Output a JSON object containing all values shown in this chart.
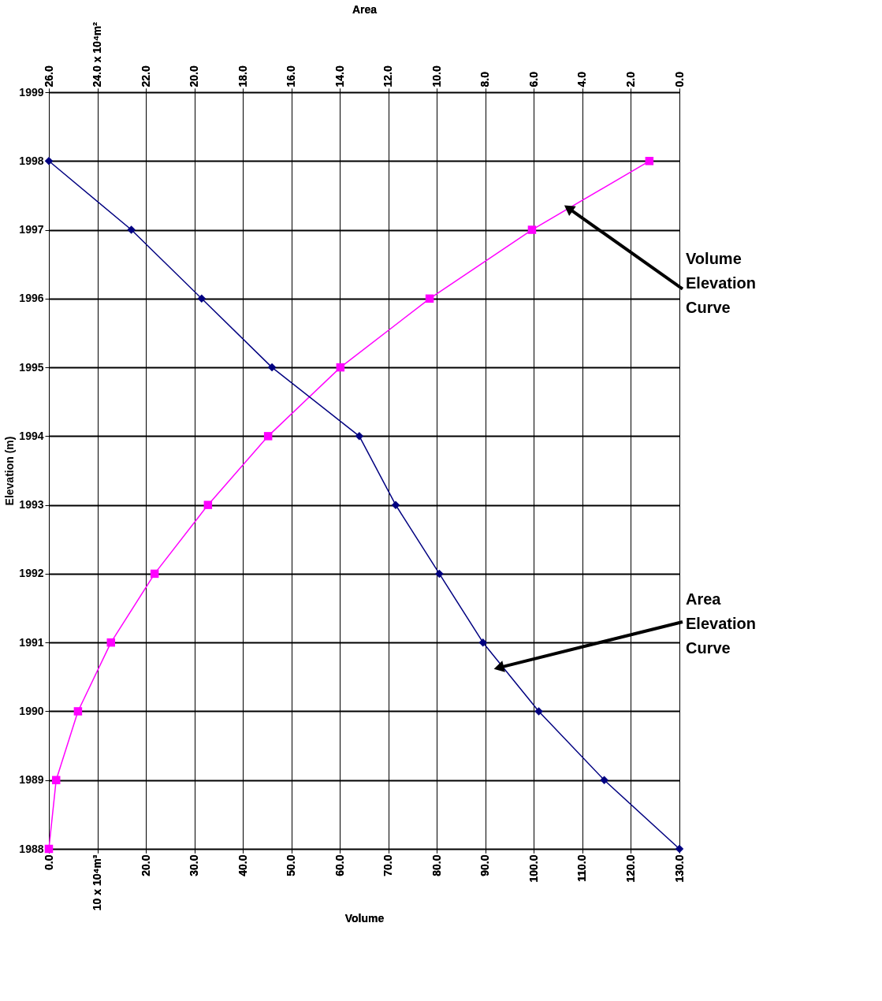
{
  "chart_data": {
    "type": "line",
    "xlabel": "Volume",
    "x2label": "Area",
    "ylabel": "Elevation (m)",
    "x": [
      1988,
      1989,
      1990,
      1991,
      1992,
      1993,
      1994,
      1995,
      1996,
      1997,
      1998
    ],
    "series": [
      {
        "color": "#ff00ff",
        "marker": "square",
        "values": [
          0.0,
          1.5,
          6.0,
          12.8,
          21.8,
          32.8,
          45.2,
          60.1,
          78.5,
          99.6,
          123.8
        ]
      },
      {
        "color": "#000080",
        "marker": "diamond",
        "axis": "x2",
        "values": [
          0.0,
          3.1,
          5.8,
          8.1,
          9.9,
          11.7,
          13.2,
          16.8,
          19.7,
          22.6,
          26.0
        ]
      }
    ],
    "orientation": "horizontal",
    "xlim": [
      0,
      130
    ],
    "xticks": [
      {
        "value": 0,
        "label": "0.0"
      },
      {
        "value": 10,
        "label": "10 x 10⁴m³"
      },
      {
        "value": 20,
        "label": "20.0"
      },
      {
        "value": 30,
        "label": "30.0"
      },
      {
        "value": 40,
        "label": "40.0"
      },
      {
        "value": 50,
        "label": "50.0"
      },
      {
        "value": 60,
        "label": "60.0"
      },
      {
        "value": 70,
        "label": "70.0"
      },
      {
        "value": 80,
        "label": "80.0"
      },
      {
        "value": 90,
        "label": "90.0"
      },
      {
        "value": 100,
        "label": "100.0"
      },
      {
        "value": 110,
        "label": "110.0"
      },
      {
        "value": 120,
        "label": "120.0"
      },
      {
        "value": 130,
        "label": "130.0"
      }
    ],
    "x2lim": [
      26,
      0
    ],
    "x2ticks": [
      {
        "value": 26,
        "label": "26.0"
      },
      {
        "value": 24,
        "label": "24.0  x 10⁴m²"
      },
      {
        "value": 22,
        "label": "22.0"
      },
      {
        "value": 20,
        "label": "20.0"
      },
      {
        "value": 18,
        "label": "18.0"
      },
      {
        "value": 16,
        "label": "16.0"
      },
      {
        "value": 14,
        "label": "14.0"
      },
      {
        "value": 12,
        "label": "12.0"
      },
      {
        "value": 10,
        "label": "10.0"
      },
      {
        "value": 8,
        "label": "8.0"
      },
      {
        "value": 6,
        "label": "6.0"
      },
      {
        "value": 4,
        "label": "4.0"
      },
      {
        "value": 2,
        "label": "2.0"
      },
      {
        "value": 0,
        "label": "0.0"
      }
    ],
    "ylim": [
      1988,
      1999
    ],
    "yticks": [
      1988,
      1989,
      1990,
      1991,
      1992,
      1993,
      1994,
      1995,
      1996,
      1997,
      1998,
      1999
    ],
    "grid": true,
    "line_style": "solid",
    "annotations": [
      {
        "text": "Volume Elevation Curve",
        "x": 107.4,
        "y": 1997.3
      },
      {
        "text": "Area Elevation Curve",
        "x": 93.1,
        "y": 1990.64
      }
    ]
  }
}
